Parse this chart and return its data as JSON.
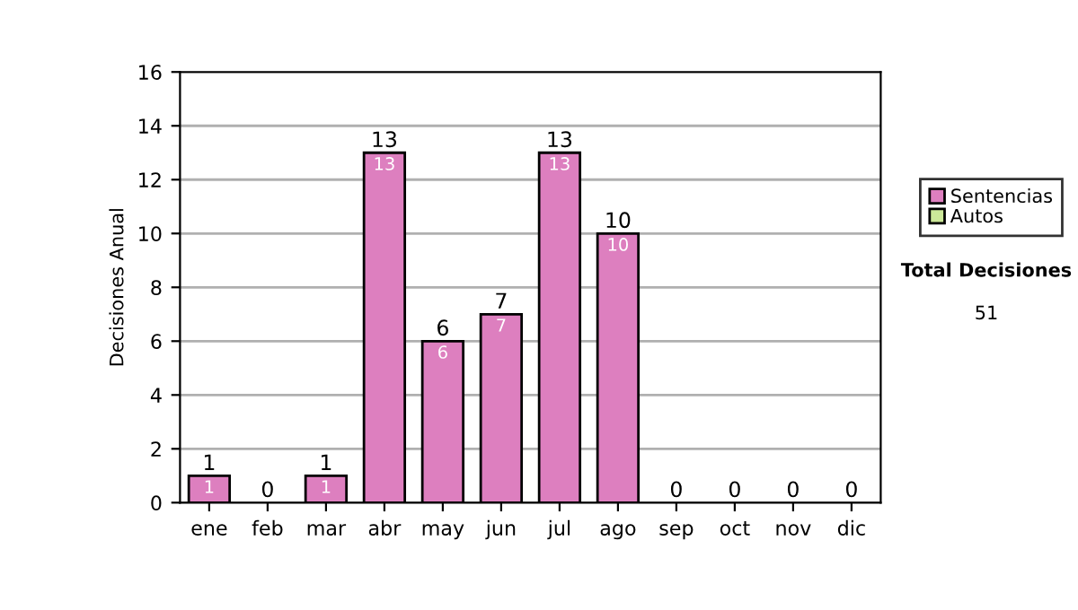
{
  "chart_data": {
    "type": "bar",
    "stacked": true,
    "ylabel": "Decisiones Anual",
    "categories": [
      "ene",
      "feb",
      "mar",
      "abr",
      "may",
      "jun",
      "jul",
      "ago",
      "sep",
      "oct",
      "nov",
      "dic"
    ],
    "series": [
      {
        "name": "Sentencias",
        "color": "#dd7fbf",
        "values": [
          1,
          0,
          1,
          13,
          6,
          7,
          13,
          10,
          0,
          0,
          0,
          0
        ],
        "value_labels": [
          "1",
          null,
          "1",
          "13",
          "6",
          "7",
          "13",
          "10",
          null,
          null,
          null,
          null
        ]
      },
      {
        "name": "Autos",
        "color": "#cce899",
        "values": [
          0,
          0,
          0,
          0,
          0,
          0,
          0,
          0,
          0,
          0,
          0,
          0
        ]
      }
    ],
    "totals": [
      "1",
      "0",
      "1",
      "13",
      "6",
      "7",
      "13",
      "10",
      "0",
      "0",
      "0",
      "0"
    ],
    "ylim": [
      0,
      16
    ],
    "yticks": [
      0,
      2,
      4,
      6,
      8,
      10,
      12,
      14,
      16
    ],
    "grid": "y",
    "legend": "right",
    "annotations": [
      "Total Decisiones",
      "51"
    ]
  }
}
